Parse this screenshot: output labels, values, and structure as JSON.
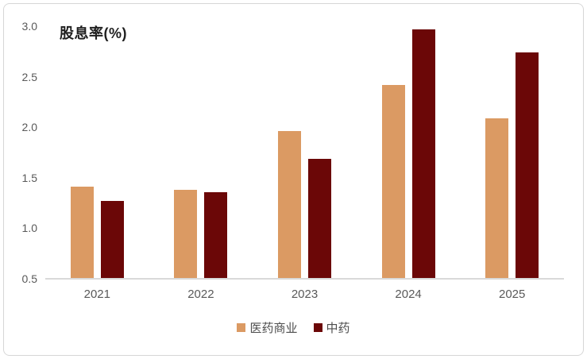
{
  "chart_data": {
    "type": "bar",
    "title": "股息率(%)",
    "categories": [
      "2021",
      "2022",
      "2023",
      "2024",
      "2025"
    ],
    "series": [
      {
        "name": "医药商业",
        "color": "#DB9A63",
        "values": [
          1.41,
          1.38,
          1.96,
          2.42,
          2.09
        ]
      },
      {
        "name": "中药",
        "color": "#6B0707",
        "values": [
          1.27,
          1.36,
          1.69,
          2.97,
          2.74
        ]
      }
    ],
    "ylim": [
      0.5,
      3.0
    ],
    "yticks": [
      "3.0",
      "2.5",
      "2.0",
      "1.5",
      "1.0",
      "0.5"
    ],
    "grid": false,
    "legend_position": "bottom",
    "axis_color": "#d9d9d9",
    "tick_label_color": "#595959"
  }
}
